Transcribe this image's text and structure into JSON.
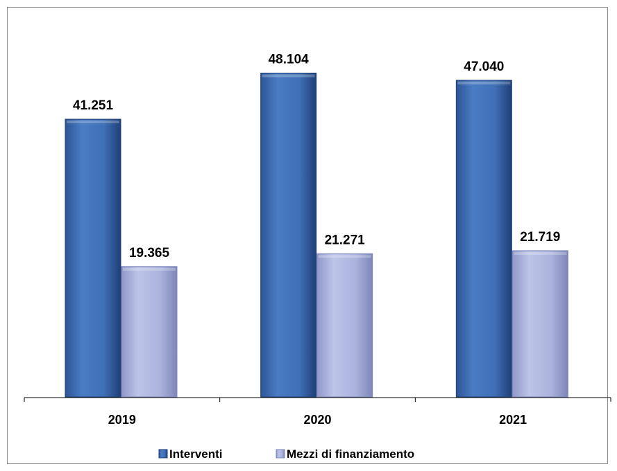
{
  "chart_data": {
    "type": "bar",
    "categories": [
      "2019",
      "2020",
      "2021"
    ],
    "series": [
      {
        "name": "Interventi",
        "values": [
          41251,
          48104,
          47040
        ],
        "labels": [
          "41.251",
          "48.104",
          "47.040"
        ],
        "color": "#3f6fb6"
      },
      {
        "name": "Mezzi di finanziamento",
        "values": [
          19365,
          21271,
          21719
        ],
        "labels": [
          "19.365",
          "21.271",
          "21.719"
        ],
        "color": "#aab3dc"
      }
    ],
    "title": "",
    "xlabel": "",
    "ylabel": "",
    "ylim": [
      0,
      52000
    ],
    "grid": false,
    "legend": "bottom"
  }
}
